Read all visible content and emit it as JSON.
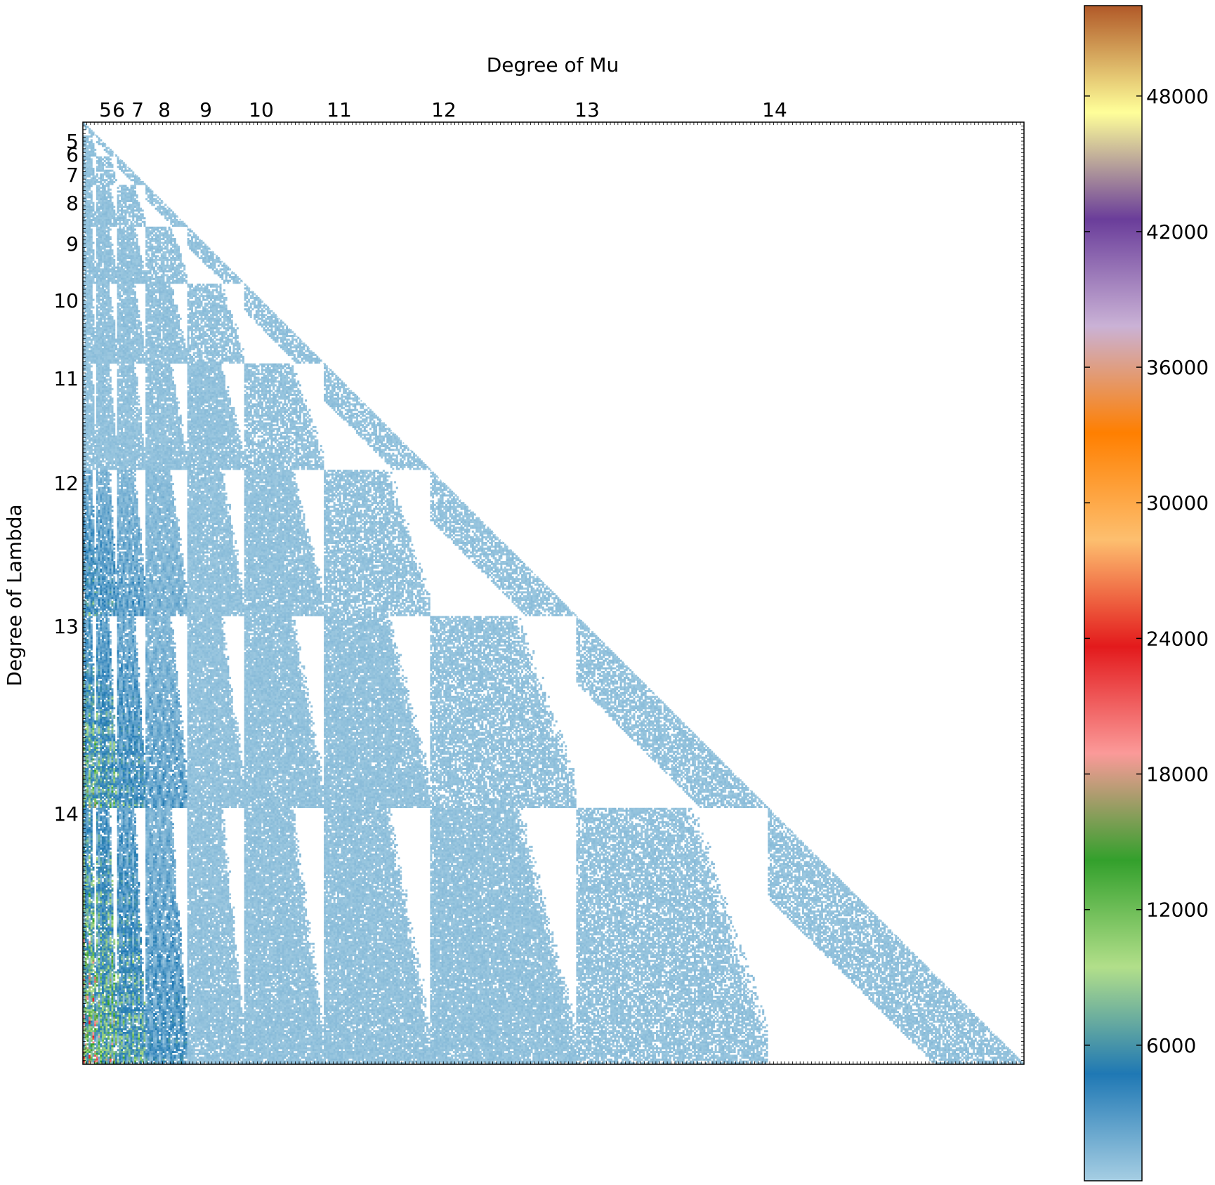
{
  "chart_data": {
    "type": "heatmap",
    "title": "",
    "xlabel": "Degree of Mu",
    "ylabel": "Degree of Lambda",
    "x_tick_labels": [
      "5",
      "6",
      "7",
      "8",
      "9",
      "10",
      "11",
      "12",
      "13",
      "14"
    ],
    "y_tick_labels": [
      "5",
      "6",
      "7",
      "8",
      "9",
      "10",
      "11",
      "12",
      "13",
      "14"
    ],
    "degree_block_sizes": [
      7,
      11,
      15,
      22,
      30,
      42,
      56,
      77,
      101,
      135
    ],
    "structure": "lower-triangular block matrix of partition pairs ordered by degree; nonzero entries only for degree(Mu) <= degree(Lambda)",
    "colorbar": {
      "ticks": [
        6000,
        12000,
        18000,
        24000,
        30000,
        36000,
        42000,
        48000
      ],
      "tick_labels": [
        "6000",
        "12000",
        "18000",
        "24000",
        "30000",
        "36000",
        "42000",
        "48000"
      ],
      "min": 0,
      "max": 52000,
      "colormap": "Paired",
      "colors": [
        "#a6cee3",
        "#1f78b4",
        "#b2df8a",
        "#33a02c",
        "#fb9a99",
        "#e31a1c",
        "#fdbf6f",
        "#ff7f00",
        "#cab2d6",
        "#6a3d9a",
        "#ffff99",
        "#b15928"
      ]
    },
    "max_value_region": "bottom-left blocks (Lambda degree 13-14, Mu degree 5-7) reach roughly 24000-28000"
  }
}
